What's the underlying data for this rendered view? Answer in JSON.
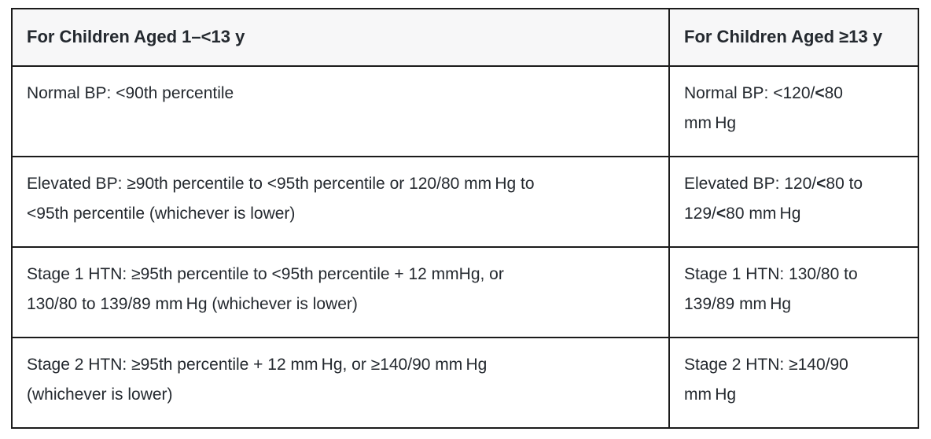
{
  "colors": {
    "border-color": "#1b1b1b",
    "header-bg": "#f7f7f8",
    "text-color": "#24292f",
    "page-bg": "#ffffff"
  },
  "table": {
    "header": {
      "left": "For Children Aged 1–<13 y",
      "right": "For Children Aged ≥13 y"
    },
    "rows": [
      {
        "name": "normal-bp",
        "left": [
          {
            "t": "Normal BP: <90th percentile",
            "b": false
          }
        ],
        "right": [
          {
            "t": "Normal BP: <120/",
            "b": false
          },
          {
            "t": "<",
            "b": true
          },
          {
            "t": "80\nmm Hg",
            "b": false
          }
        ]
      },
      {
        "name": "elevated-bp",
        "left": [
          {
            "t": "Elevated BP: ≥90th percentile to <95th percentile or 120/80 mm Hg to\n<95th percentile (whichever is lower)",
            "b": false
          }
        ],
        "right": [
          {
            "t": "Elevated BP: 120/",
            "b": false
          },
          {
            "t": "<",
            "b": true
          },
          {
            "t": "80 to\n129/",
            "b": false
          },
          {
            "t": "<",
            "b": true
          },
          {
            "t": "80 mm Hg",
            "b": false
          }
        ]
      },
      {
        "name": "stage-1-htn",
        "left": [
          {
            "t": "Stage 1 HTN: ≥95th percentile to <95th percentile + 12 mmHg, or\n130/80 to 139/89 mm Hg (whichever is lower)",
            "b": false
          }
        ],
        "right": [
          {
            "t": "Stage 1 HTN: 130/80 to\n139/89 mm Hg",
            "b": false
          }
        ]
      },
      {
        "name": "stage-2-htn",
        "left": [
          {
            "t": "Stage 2 HTN: ≥95th percentile + 12 mm Hg, or ≥140/90 mm Hg\n(whichever is lower)",
            "b": false
          }
        ],
        "right": [
          {
            "t": "Stage 2 HTN: ≥140/90\nmm Hg",
            "b": false
          }
        ]
      }
    ]
  }
}
